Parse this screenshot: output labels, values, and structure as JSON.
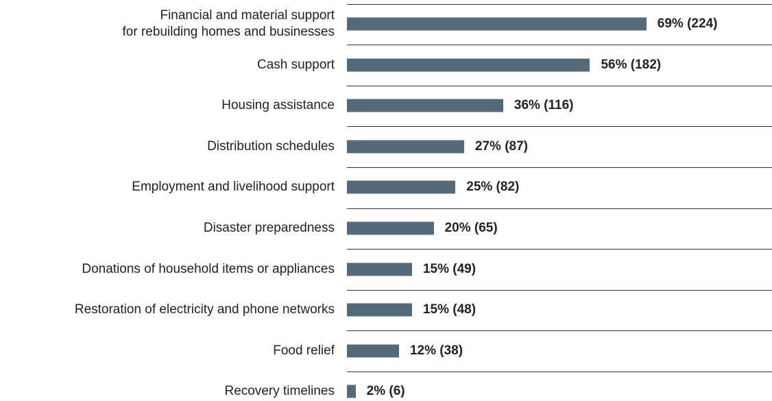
{
  "chart_data": {
    "type": "bar",
    "orientation": "horizontal",
    "color": "#536b78",
    "categories": [
      "Financial and material support\nfor rebuilding homes and businesses",
      "Cash support",
      "Housing assistance",
      "Distribution schedules",
      "Employment and livelihood support",
      "Disaster preparedness",
      "Donations of household items or appliances",
      "Restoration of electricity and phone networks",
      "Food relief",
      "Recovery timelines"
    ],
    "values": [
      69,
      56,
      36,
      27,
      25,
      20,
      15,
      15,
      12,
      2
    ],
    "value_labels": [
      "69% (224)",
      "56% (182)",
      "36% (116)",
      "27% (87)",
      "25% (82)",
      "20% (65)",
      "15% (49)",
      "15% (48)",
      "12% (38)",
      "2% (6)"
    ]
  }
}
